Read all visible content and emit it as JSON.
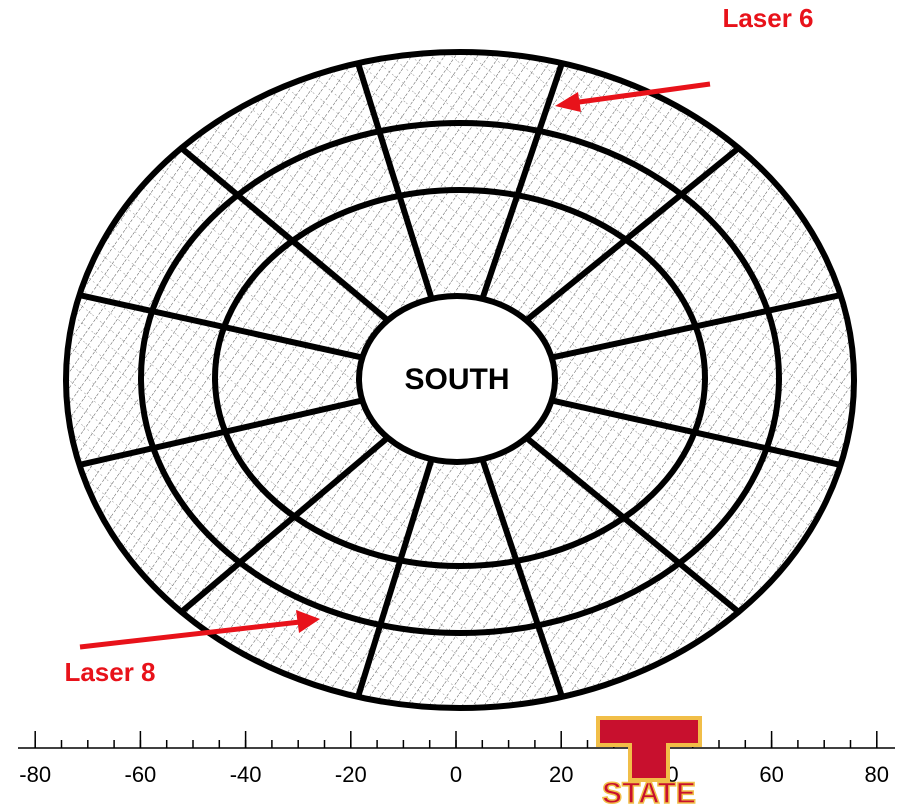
{
  "labels": {
    "laser6": "Laser 6",
    "laser8": "Laser 8",
    "center": "SOUTH"
  },
  "axis": {
    "xticks": [
      -80,
      -60,
      -40,
      -20,
      0,
      20,
      40,
      60,
      80
    ]
  },
  "logo": {
    "text": "STATE"
  }
}
